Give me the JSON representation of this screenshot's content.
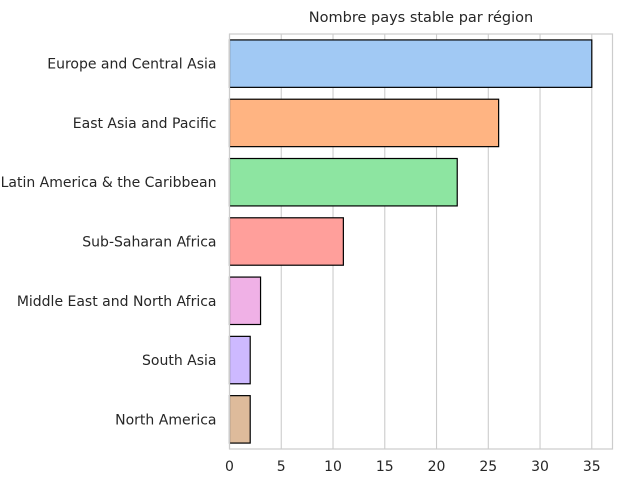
{
  "chart_data": {
    "type": "bar",
    "orientation": "horizontal",
    "title": "Nombre pays stable par région",
    "xlabel": "",
    "ylabel": "",
    "categories": [
      "Europe and Central Asia",
      "East Asia and Pacific",
      "Latin America & the Caribbean",
      "Sub-Saharan Africa",
      "Middle East and North Africa",
      "South Asia",
      "North America"
    ],
    "values": [
      35,
      26,
      22,
      11,
      3,
      2,
      2
    ],
    "colors": [
      "#a1c9f4",
      "#ffb482",
      "#8de5a1",
      "#ff9f9b",
      "#f0b1e6",
      "#cdb9ff",
      "#debb9b"
    ],
    "xlim": [
      0,
      37
    ],
    "xticks": [
      0,
      5,
      10,
      15,
      20,
      25,
      30,
      35
    ],
    "grid": "vertical",
    "legend": "none"
  }
}
